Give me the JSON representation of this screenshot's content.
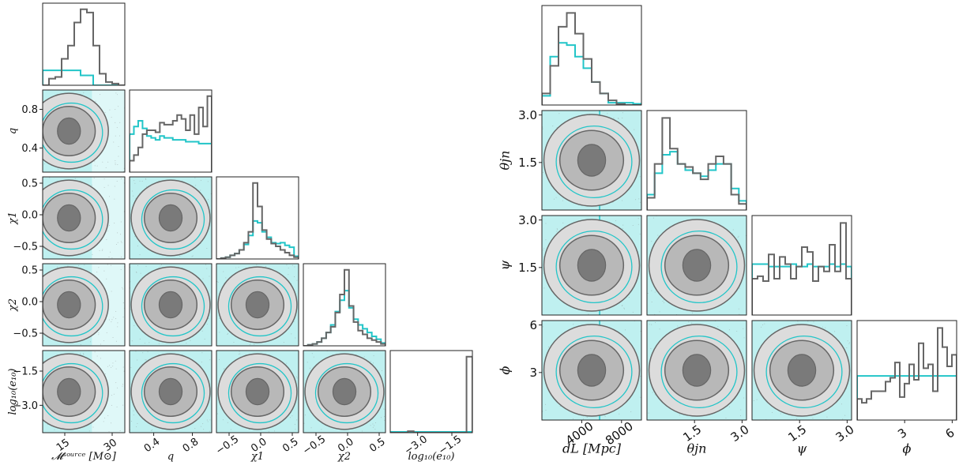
{
  "colors": {
    "prior": "#22c5c8",
    "posterior": "#666666",
    "posterior_fill": "#7a7a7a"
  },
  "chart_data": [
    {
      "type": "corner",
      "parameters": [
        "chirp_mass_source",
        "q",
        "chi1",
        "chi2",
        "log10_e10"
      ],
      "axis_labels": [
        "𝓜ˢᵒᵘʳᶜᵉ [M⊙]",
        "q",
        "χ1",
        "χ2",
        "log₁₀(e₁₀)"
      ],
      "ranges": [
        [
          8,
          34
        ],
        [
          0.15,
          1.0
        ],
        [
          -0.7,
          0.6
        ],
        [
          -0.7,
          0.6
        ],
        [
          -4.2,
          -0.6
        ]
      ],
      "ticks": [
        [
          15,
          30
        ],
        [
          0.4,
          0.8
        ],
        [
          -0.5,
          0.0,
          0.5
        ],
        [
          -0.5,
          0.0,
          0.5
        ],
        [
          -3.0,
          -1.5
        ]
      ],
      "tick_labels": [
        [
          "15",
          "30"
        ],
        [
          "0.4",
          "0.8"
        ],
        [
          "−0.5",
          "0.0",
          "0.5"
        ],
        [
          "−0.5",
          "0.0",
          "0.5"
        ],
        [
          "−3.0",
          "−1.5"
        ]
      ],
      "histograms": {
        "posterior": [
          [
            0,
            4,
            5,
            16,
            24,
            38,
            46,
            44,
            24,
            7,
            2,
            1,
            0
          ],
          [
            6,
            9,
            13,
            20,
            22,
            22,
            21,
            26,
            25,
            25,
            27,
            30,
            28,
            22,
            30,
            20,
            34,
            24,
            40
          ],
          [
            0,
            1,
            2,
            4,
            6,
            10,
            18,
            30,
            84,
            58,
            32,
            22,
            17,
            14,
            10,
            7,
            4,
            2
          ],
          [
            0,
            1,
            2,
            4,
            8,
            14,
            20,
            35,
            54,
            80,
            42,
            25,
            16,
            12,
            8,
            6,
            4,
            2
          ],
          [
            0,
            0,
            0,
            2,
            0,
            0,
            0,
            0,
            0,
            0,
            0,
            0,
            0,
            100
          ]
        ],
        "prior": [
          [
            9,
            9,
            9,
            9,
            9,
            9,
            6,
            6,
            0,
            0,
            0,
            0,
            0
          ],
          [
            20,
            24,
            27,
            23,
            19,
            18,
            17,
            19,
            18,
            18,
            17,
            17,
            17,
            16,
            16,
            16,
            15,
            15,
            15
          ],
          [
            0,
            1,
            2,
            4,
            6,
            10,
            16,
            26,
            42,
            40,
            30,
            24,
            18,
            17,
            18,
            15,
            13,
            3
          ],
          [
            0,
            1,
            2,
            4,
            8,
            14,
            22,
            36,
            48,
            58,
            40,
            28,
            22,
            18,
            14,
            10,
            7,
            3
          ],
          [
            1,
            1,
            1,
            1,
            1,
            1,
            1,
            1,
            1,
            1,
            1,
            1,
            1,
            1
          ]
        ]
      }
    },
    {
      "type": "corner",
      "parameters": [
        "d_L",
        "theta_jn",
        "psi",
        "phi"
      ],
      "axis_labels": [
        "dL [Mpc]",
        "θjn",
        "ψ",
        "ϕ"
      ],
      "ranges": [
        [
          0,
          10000
        ],
        [
          0,
          3.14
        ],
        [
          0,
          3.14
        ],
        [
          0,
          6.28
        ]
      ],
      "ticks": [
        [
          4000,
          8000
        ],
        [
          1.5,
          3.0
        ],
        [
          1.5,
          3.0
        ],
        [
          3,
          6
        ]
      ],
      "tick_labels": [
        [
          "4000",
          "8000"
        ],
        [
          "1.5",
          "3.0"
        ],
        [
          "1.5",
          "3.0"
        ],
        [
          "3",
          "6"
        ]
      ],
      "histograms": {
        "posterior": [
          [
            10,
            34,
            68,
            80,
            62,
            40,
            20,
            10,
            4,
            1,
            0,
            0
          ],
          [
            8,
            30,
            60,
            40,
            30,
            28,
            24,
            20,
            30,
            35,
            30,
            10,
            4
          ],
          [
            30,
            32,
            28,
            50,
            30,
            48,
            42,
            30,
            40,
            56,
            52,
            28,
            40,
            36,
            58,
            36,
            76,
            30
          ],
          [
            22,
            18,
            22,
            30,
            30,
            30,
            40,
            44,
            60,
            24,
            38,
            58,
            42,
            80,
            54,
            58,
            30,
            96,
            76,
            56,
            68
          ]
        ],
        "prior": [
          [
            8,
            42,
            54,
            52,
            42,
            32,
            20,
            10,
            2,
            2,
            2,
            1
          ],
          [
            10,
            24,
            36,
            38,
            30,
            26,
            24,
            22,
            26,
            30,
            30,
            14,
            6
          ],
          [
            42,
            42,
            42,
            40,
            40,
            40,
            40,
            42,
            40,
            40,
            42,
            40,
            40,
            40,
            42,
            40,
            42,
            40
          ],
          [
            46,
            46,
            46,
            46,
            46,
            46,
            46,
            46,
            46,
            46,
            46,
            46,
            46,
            46,
            46,
            46,
            46,
            46,
            46,
            46,
            46
          ]
        ]
      }
    }
  ]
}
